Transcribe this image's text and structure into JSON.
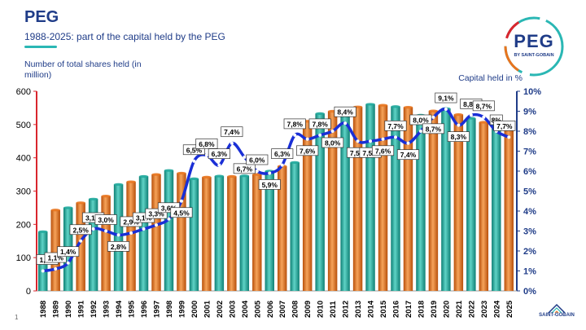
{
  "header": {
    "title": "PEG",
    "subtitle": "1988-2025: part of the capital held by the PEG"
  },
  "logo": {
    "text": "PEG",
    "sub": "BY SAINT-GOBAIN"
  },
  "footer": {
    "slide_number": "1",
    "brand": "SAINT-GOBAIN"
  },
  "colors": {
    "teal": "#1fa99c",
    "orange": "#e8741e",
    "line": "#1a2fd6",
    "title": "#1f3c88"
  },
  "chart_data": {
    "type": "bar",
    "ylabel": "Number of total shares held (in million)",
    "y2label": "Capital held in %",
    "ylim": [
      0,
      600
    ],
    "y2lim": [
      0,
      10
    ],
    "yticks": [
      "0",
      "100",
      "200",
      "300",
      "400",
      "500",
      "600"
    ],
    "y2ticks": [
      "0%",
      "1%",
      "2%",
      "3%",
      "4%",
      "5%",
      "6%",
      "7%",
      "8%",
      "9%",
      "10%"
    ],
    "categories": [
      "1988",
      "1989",
      "1990",
      "1991",
      "1992",
      "1993",
      "1994",
      "1995",
      "1996",
      "1997",
      "1998",
      "1999",
      "2000",
      "2001",
      "2002",
      "2003",
      "2004",
      "2005",
      "2006",
      "2007",
      "2008",
      "2009",
      "2010",
      "2011",
      "2012",
      "2013",
      "2014",
      "2015",
      "2016",
      "2017",
      "2018",
      "2019",
      "2020",
      "2021",
      "2022",
      "2023",
      "2024",
      "2025"
    ],
    "bar_colors": [
      "teal",
      "orange",
      "teal",
      "orange",
      "teal",
      "orange",
      "teal",
      "orange",
      "teal",
      "orange",
      "teal",
      "orange",
      "teal",
      "orange",
      "teal",
      "orange",
      "teal",
      "orange",
      "teal",
      "orange",
      "teal",
      "orange",
      "teal",
      "orange",
      "teal",
      "orange",
      "teal",
      "orange",
      "teal",
      "orange",
      "teal",
      "orange",
      "teal",
      "orange",
      "teal",
      "orange",
      "teal",
      "orange"
    ],
    "series": [
      {
        "name": "Number of total shares held (in million)",
        "axis": "left",
        "values": [
          178,
          243,
          250,
          265,
          276,
          285,
          320,
          328,
          344,
          350,
          362,
          354,
          337,
          342,
          345,
          344,
          346,
          350,
          360,
          375,
          386,
          510,
          533,
          540,
          545,
          553,
          561,
          558,
          554,
          552,
          528,
          541,
          548,
          530,
          519,
          507,
          500,
          490
        ]
      },
      {
        "name": "Capital held in %",
        "axis": "right",
        "values": [
          1.0,
          1.1,
          1.4,
          2.5,
          3.1,
          3.0,
          2.8,
          2.9,
          3.1,
          3.3,
          3.6,
          4.5,
          6.5,
          6.8,
          6.3,
          7.4,
          6.7,
          6.0,
          5.9,
          6.3,
          7.8,
          7.6,
          7.8,
          8.0,
          8.4,
          7.5,
          7.5,
          7.6,
          7.7,
          7.4,
          8.0,
          8.7,
          9.1,
          8.3,
          8.8,
          8.7,
          8.0,
          7.7
        ]
      }
    ],
    "point_labels": [
      "1,0%",
      "1,1%",
      "1,4%",
      "2,5%",
      "3,1%",
      "3,0%",
      "2,8%",
      "2,9%",
      "3,1%",
      "3,3%",
      "3,6%",
      "4,5%",
      "6,5%",
      "6,8%",
      "6,3%",
      "7,4%",
      "6,7%",
      "6,0%",
      "5,9%",
      "6,3%",
      "7,8%",
      "7,6%",
      "7,8%",
      "8,0%",
      "8,4%",
      "7,5%",
      "7,5%",
      "7,6%",
      "7,7%",
      "7,4%",
      "8,0%",
      "8,7%",
      "9,1%",
      "8,3%",
      "8,8%",
      "8,7%",
      "8%",
      "7,7%"
    ],
    "label_offsets": [
      -1,
      -1,
      -1,
      -1,
      -1,
      -1,
      1,
      -1,
      -1,
      -1,
      -1,
      1,
      -1,
      -1,
      -1,
      -1,
      1,
      -1,
      1,
      -1,
      -1,
      1,
      -1,
      1,
      -1,
      1,
      1,
      1,
      -1,
      1,
      -1,
      1,
      -1,
      1,
      -1,
      -1,
      -1,
      -1
    ],
    "grid": false,
    "legend": "none"
  }
}
